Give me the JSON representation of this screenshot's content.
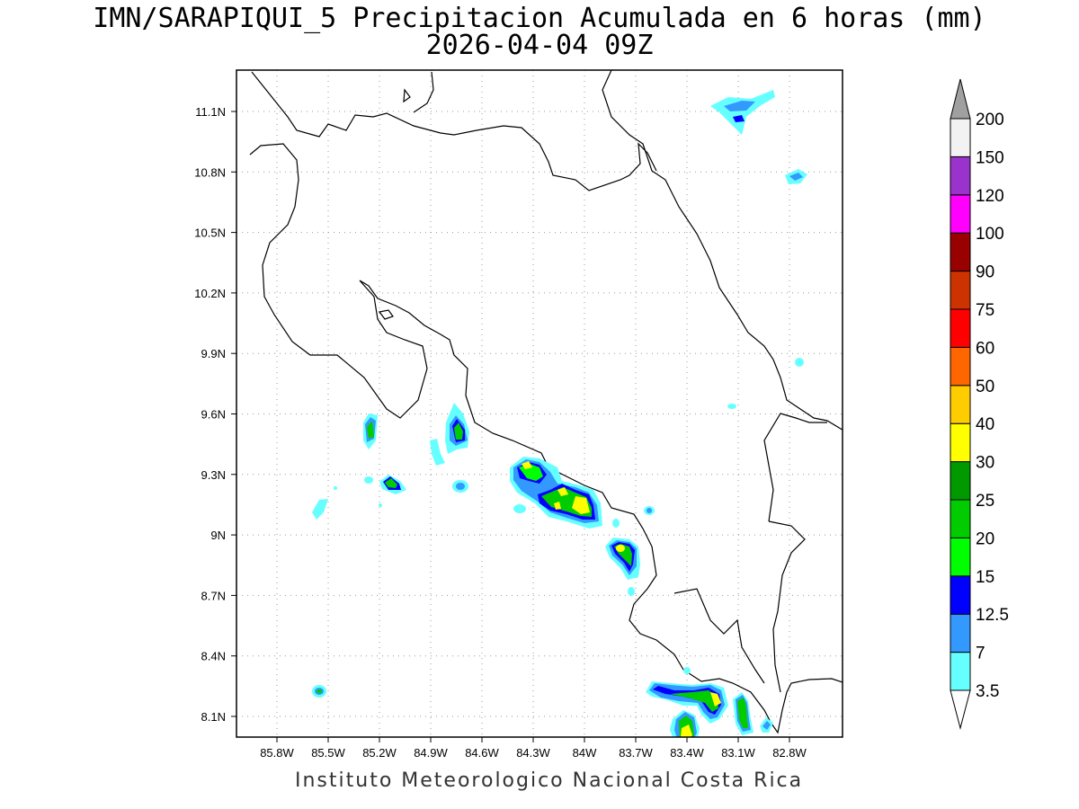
{
  "title": {
    "line1": "IMN/SARAPIQUI_5 Precipitacion Acumulada en 6 horas (mm)",
    "line2": "2026-04-04 09Z"
  },
  "footer": "Instituto Meteorologico Nacional Costa Rica",
  "axes": {
    "lon_labels": [
      "85.8W",
      "85.5W",
      "85.2W",
      "84.9W",
      "84.6W",
      "84.3W",
      "84W",
      "83.7W",
      "83.4W",
      "83.1W",
      "82.8W"
    ],
    "lat_labels": [
      "11.1N",
      "10.8N",
      "10.5N",
      "10.2N",
      "9.9N",
      "9.6N",
      "9.3N",
      "9N",
      "8.7N",
      "8.4N",
      "8.1N"
    ]
  },
  "colorbar": {
    "labels": [
      "3.5",
      "7",
      "12.5",
      "15",
      "20",
      "25",
      "30",
      "40",
      "50",
      "60",
      "75",
      "90",
      "100",
      "120",
      "150",
      "200"
    ],
    "colors": [
      "#66ffff",
      "#3399ff",
      "#0000ff",
      "#00ff00",
      "#00cc00",
      "#009900",
      "#ffff00",
      "#ffcc00",
      "#ff6600",
      "#ff0000",
      "#cc3300",
      "#990000",
      "#ff00ff",
      "#9933cc",
      "#f2f2f2",
      "#a0a0a0"
    ]
  }
}
